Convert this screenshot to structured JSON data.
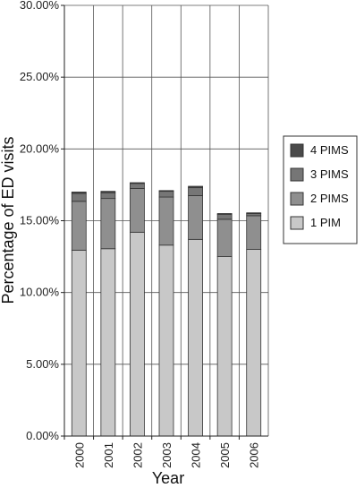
{
  "chart_data": {
    "type": "bar",
    "stacked": true,
    "categories": [
      "2000",
      "2001",
      "2002",
      "2003",
      "2004",
      "2005",
      "2006"
    ],
    "series": [
      {
        "name": "1 PIM",
        "color": "#c8c8c8",
        "values": [
          12.95,
          13.05,
          14.2,
          13.3,
          13.7,
          12.5,
          13.0
        ]
      },
      {
        "name": "2 PIMS",
        "color": "#8f8f8f",
        "values": [
          3.4,
          3.5,
          3.05,
          3.35,
          3.05,
          2.6,
          2.35
        ]
      },
      {
        "name": "3 PIMS",
        "color": "#767676",
        "values": [
          0.55,
          0.4,
          0.35,
          0.4,
          0.55,
          0.35,
          0.15
        ]
      },
      {
        "name": "4 PIMS",
        "color": "#4a4a4a",
        "values": [
          0.1,
          0.1,
          0.05,
          0.05,
          0.1,
          0.05,
          0.05
        ]
      }
    ],
    "xlabel": "Year",
    "ylabel": "Percentage of ED visits",
    "ylim": [
      0,
      30
    ],
    "yticks": [
      "0.00%",
      "5.00%",
      "10.00%",
      "15.00%",
      "20.00%",
      "25.00%",
      "30.00%"
    ],
    "grid": true,
    "legend_position": "right",
    "legend_order": [
      "4 PIMS",
      "3 PIMS",
      "2 PIMS",
      "1 PIM"
    ]
  }
}
